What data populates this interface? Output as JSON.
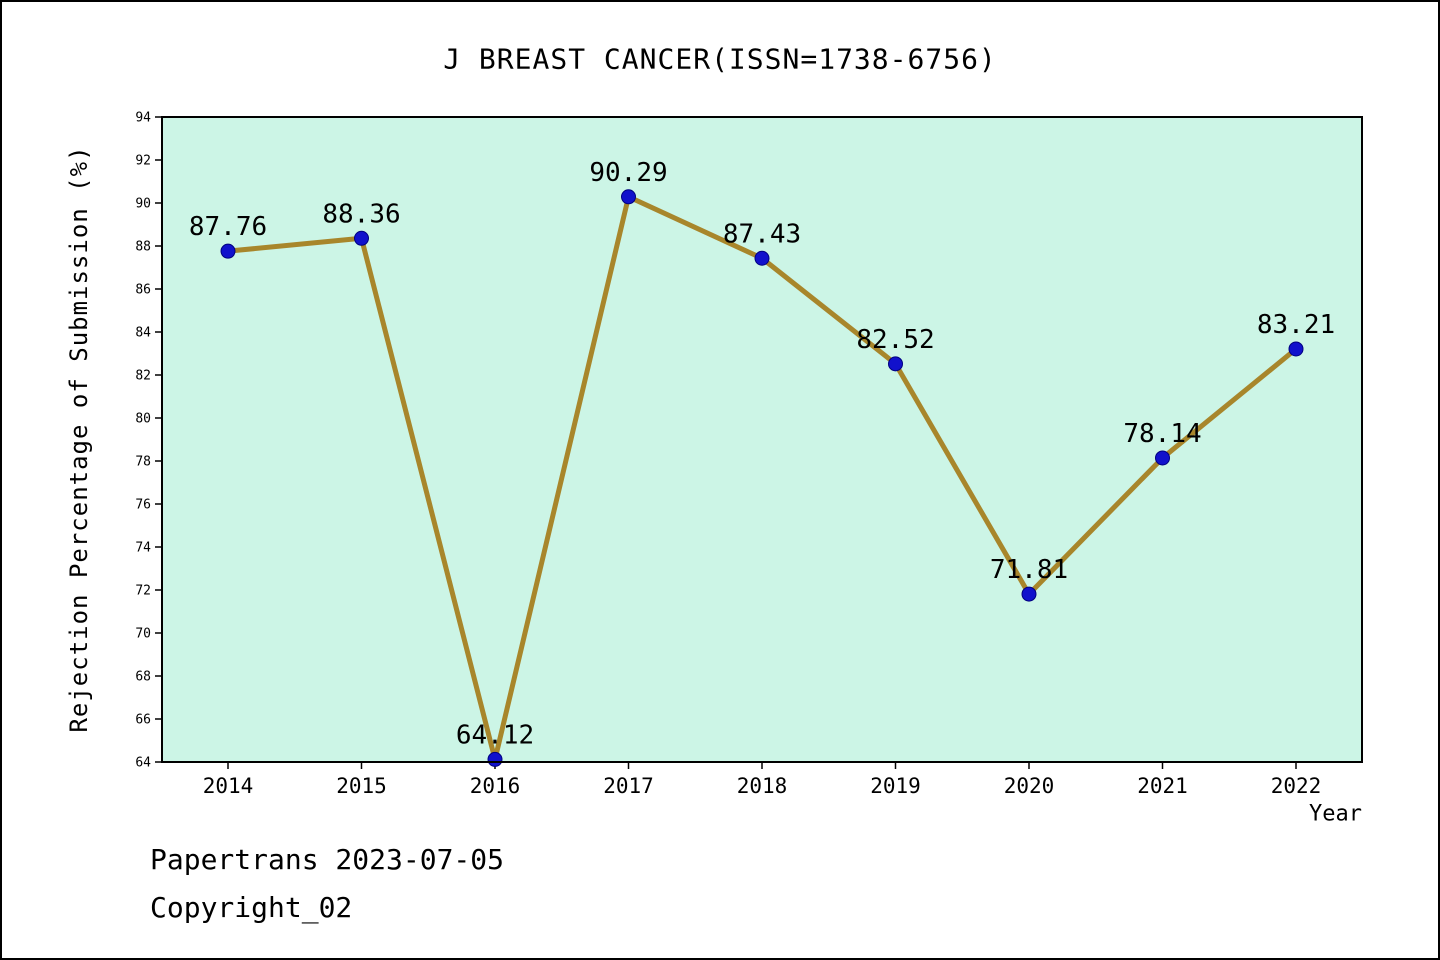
{
  "footer": {
    "line1": "Papertrans 2023-07-05",
    "line2": "Copyright_02"
  },
  "chart_data": {
    "type": "line",
    "title": "J BREAST CANCER(ISSN=1738-6756)",
    "xlabel": "Year",
    "ylabel": "Rejection Percentage of Submission (%)",
    "x": [
      2014,
      2015,
      2016,
      2017,
      2018,
      2019,
      2020,
      2021,
      2022
    ],
    "values": [
      87.76,
      88.36,
      64.12,
      90.29,
      87.43,
      82.52,
      71.81,
      78.14,
      83.21
    ],
    "labels": [
      "87.76",
      "88.36",
      "64.12",
      "90.29",
      "87.43",
      "82.52",
      "71.81",
      "78.14",
      "83.21"
    ],
    "ylim": [
      64,
      94
    ],
    "ytick_step": 2,
    "grid": false,
    "legend": "none",
    "colors": {
      "line": "#a8862b",
      "marker": "#1111cc",
      "marker_edge": "#000080",
      "plot_bg": "#ccf5e6",
      "axis": "#000000"
    }
  }
}
